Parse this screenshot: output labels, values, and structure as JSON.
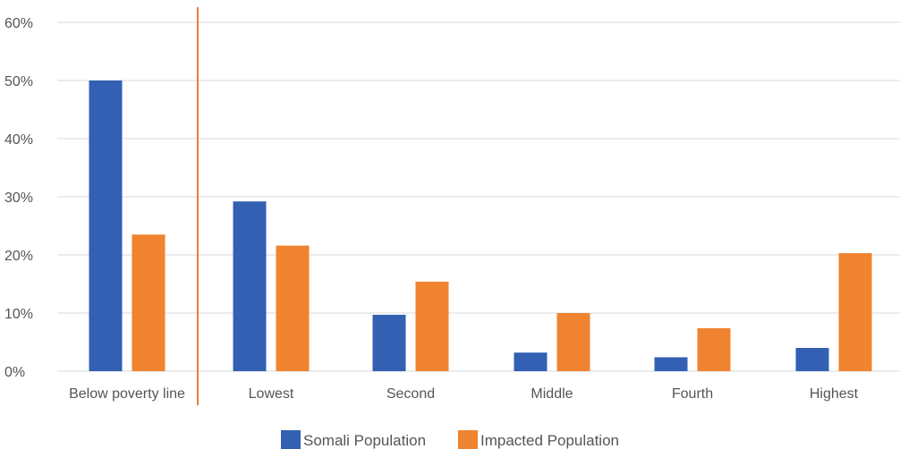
{
  "chart_data": {
    "type": "bar",
    "categories": [
      "Below poverty line",
      "Lowest",
      "Second",
      "Middle",
      "Fourth",
      "Highest"
    ],
    "series": [
      {
        "name": "Somali Population",
        "values": [
          50,
          29.2,
          9.7,
          3.2,
          2.4,
          4.0
        ]
      },
      {
        "name": "Impacted Population",
        "values": [
          23.5,
          21.6,
          15.4,
          10.0,
          7.4,
          20.3
        ]
      }
    ],
    "y_ticks": [
      "0%",
      "10%",
      "20%",
      "30%",
      "40%",
      "50%",
      "60%"
    ],
    "ylim": [
      0,
      60
    ],
    "grid": true,
    "legend_position": "bottom",
    "divider_after_category": "Below poverty line",
    "colors": {
      "Somali Population": "#3360b3",
      "Impacted Population": "#f08330",
      "divider": "#ed7d31",
      "grid": "#d9d9d9"
    }
  }
}
